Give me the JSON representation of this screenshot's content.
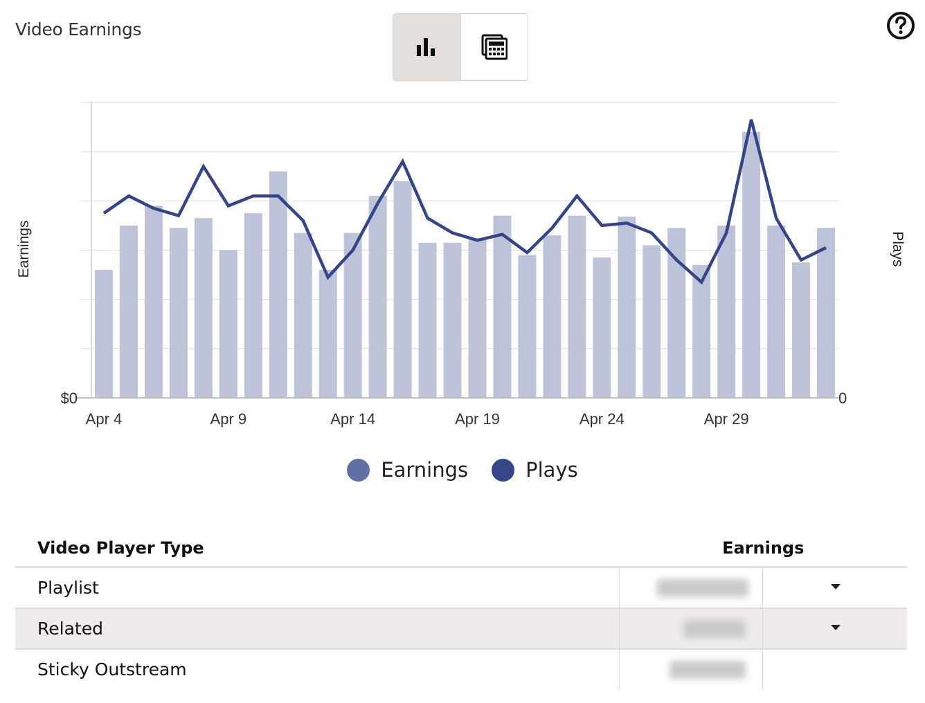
{
  "page": {
    "title": "Video Earnings"
  },
  "view_toggle": {
    "active": "chart",
    "options": [
      {
        "id": "chart",
        "icon": "bar-chart-icon"
      },
      {
        "id": "table",
        "icon": "calculator-icon"
      }
    ]
  },
  "help": {
    "icon": "help-circle-icon"
  },
  "colors": {
    "bar": "#bdc3d8",
    "line": "#354688",
    "legend_earnings": "#6270a6",
    "legend_plays": "#354688",
    "grid": "#e2e2e2"
  },
  "chart_data": {
    "type": "bar",
    "title": "",
    "ylabel": "Earnings",
    "y2label": "Plays",
    "y_tick_labels": [
      "$0"
    ],
    "y2_tick_labels": [
      "0"
    ],
    "x_tick_labels": [
      "Apr 4",
      "Apr 9",
      "Apr 14",
      "Apr 19",
      "Apr 24",
      "Apr 29"
    ],
    "categories": [
      "Apr 4",
      "Apr 5",
      "Apr 6",
      "Apr 7",
      "Apr 8",
      "Apr 9",
      "Apr 10",
      "Apr 11",
      "Apr 12",
      "Apr 13",
      "Apr 14",
      "Apr 15",
      "Apr 16",
      "Apr 17",
      "Apr 18",
      "Apr 19",
      "Apr 20",
      "Apr 21",
      "Apr 22",
      "Apr 23",
      "Apr 24",
      "Apr 25",
      "Apr 26",
      "Apr 27",
      "Apr 28",
      "Apr 29",
      "Apr 30",
      "May 1",
      "May 2",
      "May 3"
    ],
    "ylim": [
      0,
      6
    ],
    "y2lim": [
      0,
      6
    ],
    "grid": true,
    "legend_placement": "bottom-center",
    "series": [
      {
        "name": "Earnings",
        "type": "bar",
        "values": [
          2.6,
          3.5,
          3.9,
          3.45,
          3.65,
          3.0,
          3.75,
          4.6,
          3.35,
          2.6,
          3.35,
          4.1,
          4.4,
          3.15,
          3.15,
          3.25,
          3.7,
          2.9,
          3.3,
          3.7,
          2.85,
          3.68,
          3.1,
          3.45,
          2.7,
          3.5,
          5.4,
          3.5,
          2.75,
          3.45
        ]
      },
      {
        "name": "Plays",
        "type": "line",
        "values": [
          3.75,
          4.1,
          3.85,
          3.7,
          4.7,
          3.9,
          4.1,
          4.1,
          3.6,
          2.45,
          3.0,
          3.95,
          4.8,
          3.65,
          3.35,
          3.2,
          3.32,
          2.95,
          3.45,
          4.1,
          3.5,
          3.55,
          3.35,
          2.8,
          2.35,
          3.35,
          5.65,
          3.65,
          2.8,
          3.05
        ]
      }
    ]
  },
  "legend": [
    {
      "label": "Earnings",
      "color_key": "legend_earnings"
    },
    {
      "label": "Plays",
      "color_key": "legend_plays"
    }
  ],
  "table": {
    "headers": {
      "type": "Video Player Type",
      "earnings": "Earnings"
    },
    "rows": [
      {
        "type": "Playlist",
        "shaded": false,
        "caret": true,
        "blur_width": 132
      },
      {
        "type": "Related",
        "shaded": true,
        "caret": true,
        "blur_width": 90
      },
      {
        "type": "Sticky Outstream",
        "shaded": false,
        "caret": false,
        "blur_width": 110
      }
    ]
  }
}
